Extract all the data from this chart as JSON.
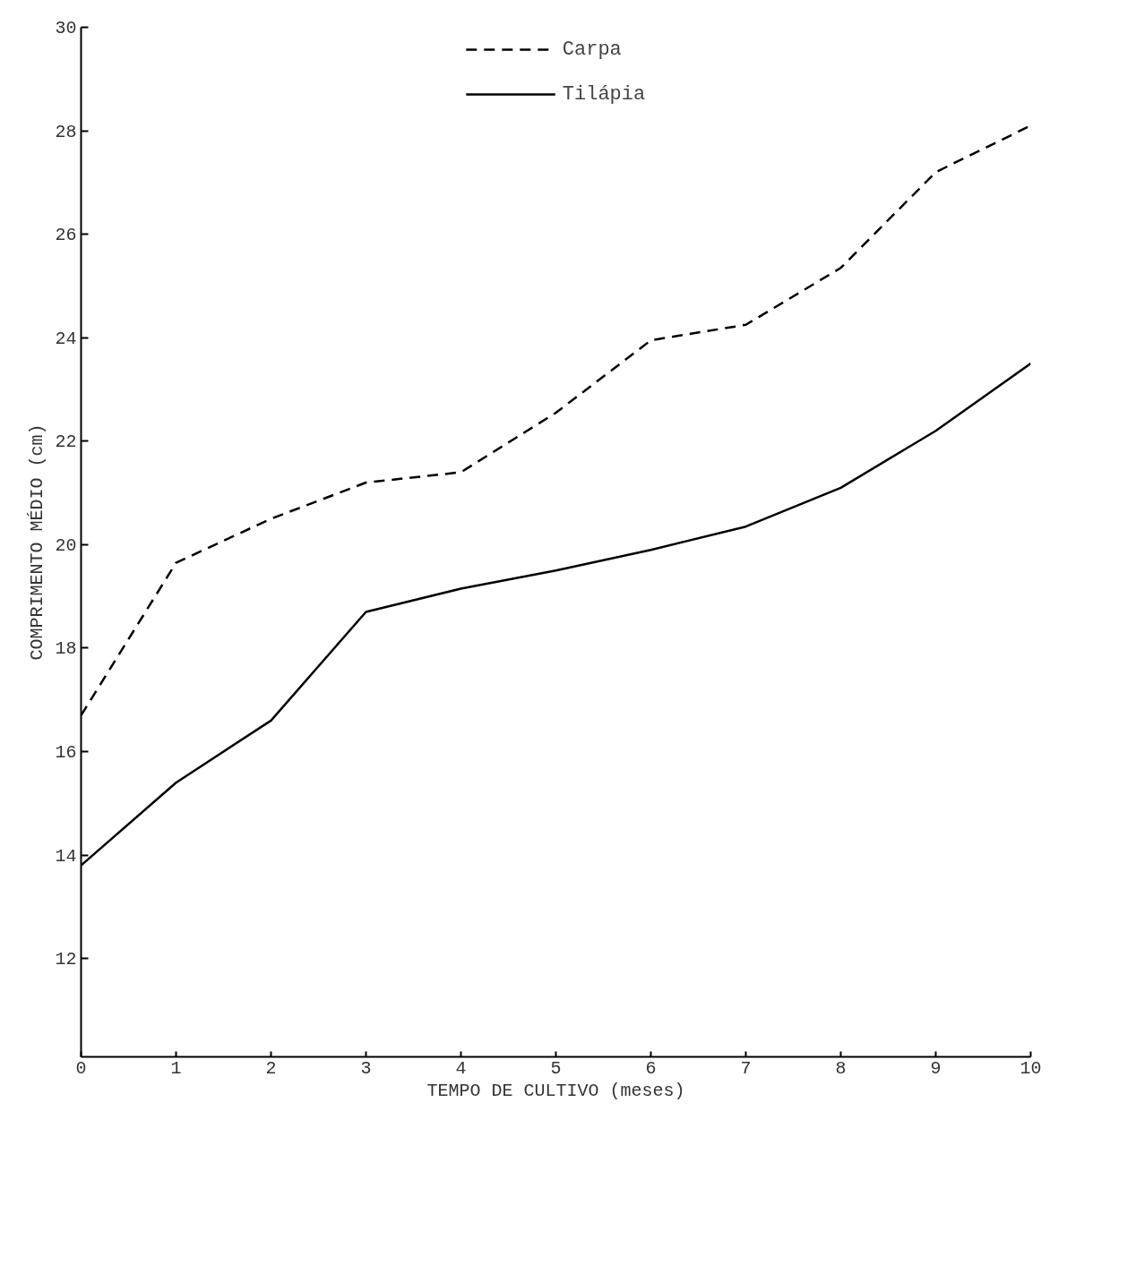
{
  "chart_data": {
    "type": "line",
    "xlabel": "TEMPO DE CULTIVO (meses)",
    "ylabel": "COMPRIMENTO MÉDIO (cm)",
    "x": [
      0,
      1,
      2,
      3,
      4,
      5,
      6,
      7,
      8,
      9,
      10
    ],
    "series": [
      {
        "name": "Carpa",
        "color": "#000000",
        "line_style": "dashed",
        "values": [
          16.7,
          19.65,
          20.5,
          21.2,
          21.4,
          22.55,
          23.95,
          24.25,
          25.35,
          27.2,
          28.1
        ]
      },
      {
        "name": "Tilápia",
        "color": "#000000",
        "line_style": "solid",
        "values": [
          13.8,
          15.4,
          16.6,
          18.7,
          19.15,
          19.5,
          19.9,
          20.35,
          21.1,
          22.2,
          23.5
        ]
      }
    ],
    "xlim": [
      0,
      10
    ],
    "ylim": [
      10.1,
      30
    ],
    "xticks": [
      0,
      1,
      2,
      3,
      4,
      5,
      6,
      7,
      8,
      9,
      10
    ],
    "yticks": [
      12,
      14,
      16,
      18,
      20,
      22,
      24,
      26,
      28,
      30
    ],
    "grid": false,
    "legend": "top",
    "marker": "none"
  }
}
